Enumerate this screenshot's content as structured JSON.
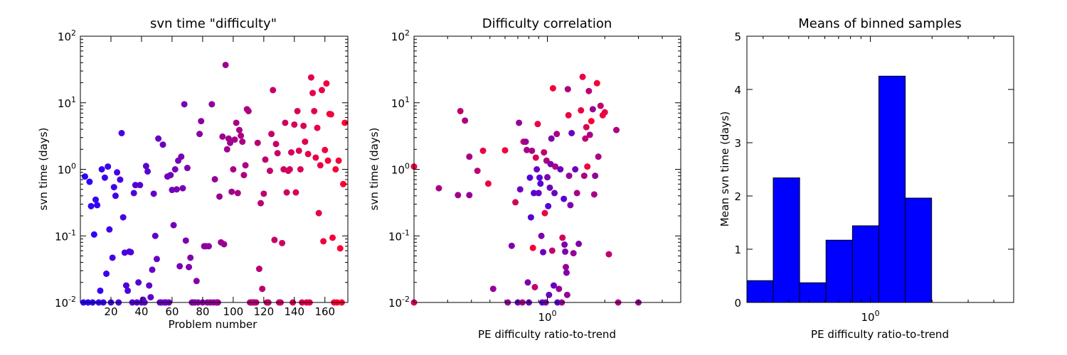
{
  "chart_data": [
    {
      "type": "scatter",
      "title": "svn time \"difficulty\"",
      "xlabel": "Problem number",
      "ylabel": "svn time (days)",
      "xscale": "linear",
      "yscale": "log",
      "xlim": [
        0,
        175
      ],
      "ylim": [
        0.01,
        100
      ],
      "xticks": [
        20,
        40,
        60,
        80,
        100,
        120,
        140,
        160
      ],
      "yticks": [
        0.01,
        0.1,
        1,
        10,
        100
      ],
      "yticklabels": [
        [
          "10",
          "-2"
        ],
        [
          "10",
          "-1"
        ],
        [
          "10",
          "0"
        ],
        [
          "10",
          "1"
        ],
        [
          "10",
          "2"
        ]
      ],
      "color_scale": [
        "#2a00ff",
        "#ff0030"
      ],
      "grid": false,
      "points": [
        [
          2,
          0.01
        ],
        [
          3,
          0.78
        ],
        [
          5,
          0.01
        ],
        [
          6,
          0.65
        ],
        [
          7,
          0.28
        ],
        [
          8,
          0.01
        ],
        [
          9,
          0.105
        ],
        [
          10,
          0.35
        ],
        [
          11,
          0.29
        ],
        [
          12,
          0.01
        ],
        [
          13,
          0.015
        ],
        [
          14,
          1.0
        ],
        [
          15,
          0.01
        ],
        [
          16,
          0.75
        ],
        [
          17,
          0.027
        ],
        [
          18,
          1.1
        ],
        [
          19,
          0.125
        ],
        [
          20,
          0.01
        ],
        [
          21,
          0.047
        ],
        [
          22,
          0.54
        ],
        [
          23,
          0.4
        ],
        [
          24,
          0.9
        ],
        [
          25,
          0.01
        ],
        [
          26,
          0.7
        ],
        [
          27,
          3.5
        ],
        [
          28,
          0.19
        ],
        [
          29,
          0.056
        ],
        [
          30,
          0.018
        ],
        [
          31,
          0.015
        ],
        [
          32,
          0.058
        ],
        [
          33,
          0.057
        ],
        [
          34,
          0.01
        ],
        [
          35,
          0.44
        ],
        [
          36,
          0.58
        ],
        [
          37,
          0.01
        ],
        [
          38,
          0.02
        ],
        [
          39,
          0.58
        ],
        [
          40,
          0.01
        ],
        [
          41,
          0.011
        ],
        [
          42,
          0.01
        ],
        [
          43,
          1.12
        ],
        [
          44,
          0.93
        ],
        [
          45,
          0.018
        ],
        [
          46,
          0.012
        ],
        [
          47,
          0.031
        ],
        [
          48,
          0.43
        ],
        [
          49,
          0.1
        ],
        [
          50,
          0.045
        ],
        [
          51,
          2.9
        ],
        [
          52,
          0.01
        ],
        [
          53,
          0.01
        ],
        [
          54,
          2.35
        ],
        [
          55,
          0.01
        ],
        [
          56,
          0.01
        ],
        [
          57,
          0.78
        ],
        [
          58,
          0.01
        ],
        [
          59,
          0.82
        ],
        [
          60,
          0.49
        ],
        [
          61,
          0.145
        ],
        [
          62,
          1.0
        ],
        [
          63,
          0.5
        ],
        [
          64,
          1.35
        ],
        [
          65,
          0.035
        ],
        [
          66,
          1.55
        ],
        [
          67,
          0.52
        ],
        [
          68,
          9.5
        ],
        [
          69,
          0.085
        ],
        [
          70,
          1.05
        ],
        [
          71,
          0.034
        ],
        [
          72,
          0.047
        ],
        [
          73,
          0.01
        ],
        [
          74,
          0.01
        ],
        [
          75,
          0.01
        ],
        [
          76,
          0.021
        ],
        [
          77,
          0.01
        ],
        [
          78,
          3.4
        ],
        [
          79,
          5.3
        ],
        [
          80,
          0.01
        ],
        [
          81,
          0.07
        ],
        [
          82,
          0.07
        ],
        [
          83,
          0.01
        ],
        [
          84,
          0.07
        ],
        [
          85,
          0.01
        ],
        [
          86,
          9.5
        ],
        [
          87,
          0.01
        ],
        [
          88,
          0.71
        ],
        [
          89,
          0.01
        ],
        [
          90,
          0.01
        ],
        [
          91,
          0.39
        ],
        [
          92,
          0.08
        ],
        [
          93,
          3.1
        ],
        [
          94,
          0.075
        ],
        [
          95,
          37
        ],
        [
          96,
          2.0
        ],
        [
          97,
          2.9
        ],
        [
          98,
          2.5
        ],
        [
          99,
          0.46
        ],
        [
          100,
          1.0
        ],
        [
          101,
          2.8
        ],
        [
          102,
          5.0
        ],
        [
          103,
          0.44
        ],
        [
          104,
          3.9
        ],
        [
          105,
          3.2
        ],
        [
          106,
          2.6
        ],
        [
          107,
          0.82
        ],
        [
          108,
          1.15
        ],
        [
          109,
          8.0
        ],
        [
          110,
          7.5
        ],
        [
          111,
          0.01
        ],
        [
          112,
          0.01
        ],
        [
          113,
          0.01
        ],
        [
          114,
          0.01
        ],
        [
          115,
          0.01
        ],
        [
          116,
          2.5
        ],
        [
          117,
          0.032
        ],
        [
          118,
          0.31
        ],
        [
          119,
          0.016
        ],
        [
          120,
          0.43
        ],
        [
          121,
          1.4
        ],
        [
          122,
          0.01
        ],
        [
          123,
          0.01
        ],
        [
          124,
          0.95
        ],
        [
          125,
          3.4
        ],
        [
          126,
          15.5
        ],
        [
          127,
          0.087
        ],
        [
          128,
          2.4
        ],
        [
          129,
          1.75
        ],
        [
          130,
          0.01
        ],
        [
          131,
          0.01
        ],
        [
          132,
          0.078
        ],
        [
          133,
          1.0
        ],
        [
          134,
          5.0
        ],
        [
          135,
          0.45
        ],
        [
          136,
          0.95
        ],
        [
          137,
          1.0
        ],
        [
          138,
          1.8
        ],
        [
          139,
          0.01
        ],
        [
          140,
          4.7
        ],
        [
          141,
          0.45
        ],
        [
          142,
          7.5
        ],
        [
          143,
          1.9
        ],
        [
          144,
          1.0
        ],
        [
          145,
          0.01
        ],
        [
          146,
          4.5
        ],
        [
          147,
          2.6
        ],
        [
          148,
          0.01
        ],
        [
          149,
          1.7
        ],
        [
          150,
          0.01
        ],
        [
          151,
          24
        ],
        [
          152,
          14
        ],
        [
          153,
          7.5
        ],
        [
          154,
          1.5
        ],
        [
          155,
          4.2
        ],
        [
          156,
          0.22
        ],
        [
          157,
          1.15
        ],
        [
          158,
          15.5
        ],
        [
          159,
          0.083
        ],
        [
          160,
          1.95
        ],
        [
          161,
          19.5
        ],
        [
          162,
          1.35
        ],
        [
          163,
          6.8
        ],
        [
          164,
          6.7
        ],
        [
          165,
          0.094
        ],
        [
          166,
          0.01
        ],
        [
          167,
          1.0
        ],
        [
          168,
          0.01
        ],
        [
          169,
          1.35
        ],
        [
          170,
          0.065
        ],
        [
          171,
          0.01
        ],
        [
          172,
          0.6
        ],
        [
          173,
          5.0
        ]
      ]
    },
    {
      "type": "scatter",
      "title": "Difficulty correlation",
      "xlabel": "PE difficulty ratio-to-trend",
      "ylabel": "svn time (days)",
      "xscale": "log",
      "yscale": "log",
      "xlim": [
        0.2,
        5
      ],
      "ylim": [
        0.01,
        100
      ],
      "xticks": [
        1
      ],
      "xticklabels": [
        [
          "10",
          "0"
        ]
      ],
      "yticks": [
        0.01,
        0.1,
        1,
        10,
        100
      ],
      "yticklabels": [
        [
          "10",
          "-2"
        ],
        [
          "10",
          "-1"
        ],
        [
          "10",
          "0"
        ],
        [
          "10",
          "1"
        ],
        [
          "10",
          "2"
        ]
      ],
      "color_scale": [
        "#2a00ff",
        "#ff0030"
      ],
      "grid": false,
      "points": [
        [
          0.2,
          1.1,
          0.9
        ],
        [
          0.2,
          0.01,
          0.8
        ],
        [
          0.27,
          0.52,
          0.6
        ],
        [
          0.34,
          0.41,
          0.55
        ],
        [
          0.35,
          7.5,
          0.7
        ],
        [
          0.37,
          5.4,
          0.6
        ],
        [
          0.39,
          1.55,
          0.6
        ],
        [
          0.39,
          0.41,
          0.5
        ],
        [
          0.43,
          0.95,
          0.7
        ],
        [
          0.46,
          1.9,
          0.9
        ],
        [
          0.49,
          0.61,
          0.9
        ],
        [
          0.52,
          0.016,
          0.5
        ],
        [
          0.6,
          1.93,
          0.95
        ],
        [
          0.62,
          0.01,
          0.5
        ],
        [
          0.65,
          0.071,
          0.4
        ],
        [
          0.68,
          0.32,
          0.8
        ],
        [
          0.7,
          0.01,
          0.3
        ],
        [
          0.71,
          5.0,
          0.5
        ],
        [
          0.72,
          0.5,
          0.3
        ],
        [
          0.74,
          0.01,
          0.6
        ],
        [
          0.75,
          2.6,
          0.8
        ],
        [
          0.77,
          2.6,
          0.5
        ],
        [
          0.78,
          1.95,
          0.6
        ],
        [
          0.79,
          0.02,
          0.4
        ],
        [
          0.8,
          0.01,
          0.3
        ],
        [
          0.81,
          0.75,
          0.2
        ],
        [
          0.82,
          0.19,
          0.2
        ],
        [
          0.83,
          1.9,
          0.6
        ],
        [
          0.84,
          0.066,
          0.95
        ],
        [
          0.85,
          0.44,
          0.2
        ],
        [
          0.86,
          0.017,
          0.7
        ],
        [
          0.87,
          1.5,
          0.8
        ],
        [
          0.88,
          1.0,
          0.3
        ],
        [
          0.89,
          4.8,
          0.9
        ],
        [
          0.9,
          0.44,
          0.3
        ],
        [
          0.91,
          0.75,
          0.2
        ],
        [
          0.92,
          0.61,
          0.2
        ],
        [
          0.93,
          0.1,
          0.4
        ],
        [
          0.94,
          0.01,
          0.2
        ],
        [
          0.95,
          0.057,
          0.3
        ],
        [
          0.96,
          1.8,
          0.7
        ],
        [
          0.97,
          0.22,
          0.9
        ],
        [
          0.98,
          0.01,
          0.4
        ],
        [
          0.99,
          1.35,
          0.6
        ],
        [
          1.0,
          0.76,
          0.4
        ],
        [
          1.01,
          0.28,
          0.2
        ],
        [
          1.02,
          0.013,
          0.3
        ],
        [
          1.03,
          0.53,
          0.3
        ],
        [
          1.04,
          1.2,
          0.4
        ],
        [
          1.05,
          2.9,
          0.4
        ],
        [
          1.06,
          0.06,
          0.7
        ],
        [
          1.07,
          16.5,
          0.95
        ],
        [
          1.08,
          0.018,
          0.3
        ],
        [
          1.09,
          0.44,
          0.3
        ],
        [
          1.1,
          1.1,
          0.6
        ],
        [
          1.12,
          3.4,
          0.6
        ],
        [
          1.13,
          0.01,
          0.2
        ],
        [
          1.15,
          0.016,
          0.5
        ],
        [
          1.17,
          1.0,
          0.3
        ],
        [
          1.19,
          0.01,
          0.5
        ],
        [
          1.2,
          0.094,
          0.8
        ],
        [
          1.22,
          0.36,
          0.2
        ],
        [
          1.23,
          0.074,
          0.4
        ],
        [
          1.24,
          0.058,
          0.4
        ],
        [
          1.25,
          0.034,
          0.5
        ],
        [
          1.26,
          0.028,
          0.4
        ],
        [
          1.27,
          0.013,
          0.5
        ],
        [
          1.28,
          16,
          0.6
        ],
        [
          1.29,
          6.5,
          0.9
        ],
        [
          1.3,
          0.8,
          0.5
        ],
        [
          1.32,
          0.29,
          0.4
        ],
        [
          1.34,
          3.5,
          0.3
        ],
        [
          1.37,
          0.055,
          0.5
        ],
        [
          1.4,
          1.0,
          0.3
        ],
        [
          1.43,
          0.44,
          0.6
        ],
        [
          1.46,
          0.076,
          0.4
        ],
        [
          1.5,
          7.7,
          0.9
        ],
        [
          1.53,
          24.5,
          0.9
        ],
        [
          1.56,
          0.8,
          0.6
        ],
        [
          1.58,
          2.9,
          0.7
        ],
        [
          1.6,
          4.3,
          0.85
        ],
        [
          1.62,
          1.1,
          0.95
        ],
        [
          1.65,
          15,
          0.7
        ],
        [
          1.67,
          3.3,
          0.6
        ],
        [
          1.7,
          5.3,
          1.0
        ],
        [
          1.73,
          8.0,
          0.5
        ],
        [
          1.76,
          0.42,
          0.6
        ],
        [
          1.78,
          0.8,
          0.5
        ],
        [
          1.82,
          19.7,
          0.95
        ],
        [
          1.85,
          1.55,
          0.6
        ],
        [
          1.9,
          9.0,
          0.7
        ],
        [
          1.95,
          6.5,
          0.95
        ],
        [
          2.0,
          7.2,
          0.9
        ],
        [
          2.1,
          0.053,
          0.7
        ],
        [
          2.3,
          3.9,
          0.6
        ],
        [
          2.35,
          0.01,
          0.6
        ],
        [
          3.0,
          0.01,
          0.5
        ]
      ]
    },
    {
      "type": "bar",
      "title": "Means of binned samples",
      "xlabel": "PE difficulty ratio-to-trend",
      "ylabel": "Mean svn time (days)",
      "xscale": "log",
      "xlim": [
        0.25,
        5
      ],
      "ylim": [
        0,
        5
      ],
      "xticks": [
        1
      ],
      "xticklabels": [
        [
          "10",
          "0"
        ]
      ],
      "yticks": [
        0,
        1,
        2,
        3,
        4,
        5
      ],
      "bar_color": "#0000ff",
      "grid": false,
      "bins": [
        {
          "from": 0.25,
          "to": 0.336,
          "value": 0.41
        },
        {
          "from": 0.336,
          "to": 0.452,
          "value": 2.34
        },
        {
          "from": 0.452,
          "to": 0.608,
          "value": 0.37
        },
        {
          "from": 0.608,
          "to": 0.818,
          "value": 1.17
        },
        {
          "from": 0.818,
          "to": 1.1,
          "value": 1.44
        },
        {
          "from": 1.1,
          "to": 1.48,
          "value": 4.25
        },
        {
          "from": 1.48,
          "to": 1.99,
          "value": 1.96
        }
      ]
    }
  ]
}
